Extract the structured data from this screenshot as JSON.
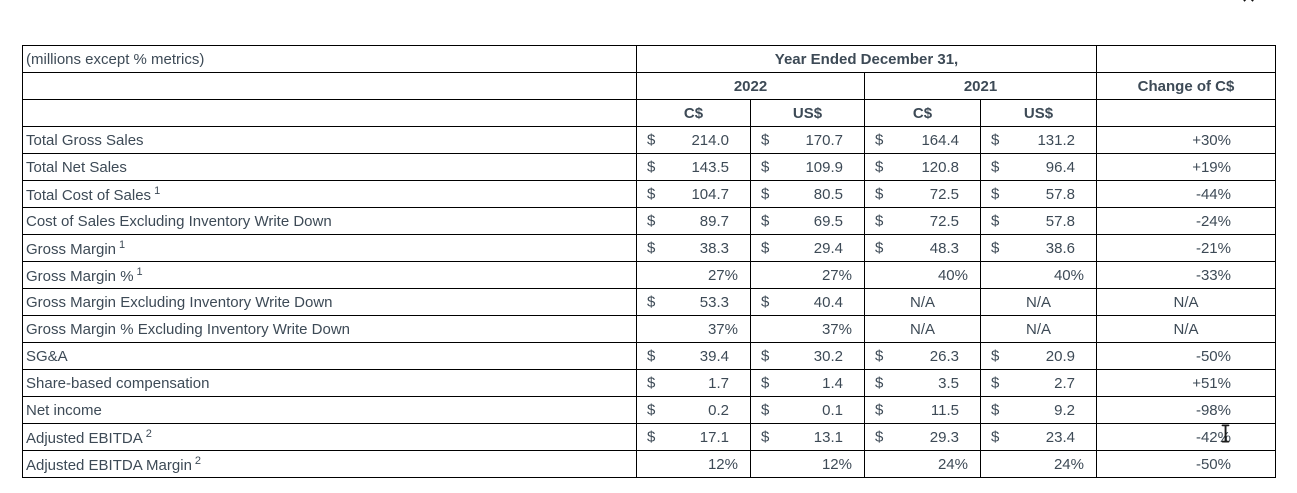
{
  "page": {
    "close_glyph": "✕"
  },
  "table": {
    "unit_note": "(millions except % metrics)",
    "period_header": "Year Ended December 31,",
    "years": [
      "2022",
      "2021"
    ],
    "change_header": "Change of C$",
    "currency_headers": [
      "C$",
      "US$",
      "C$",
      "US$"
    ],
    "rows": [
      {
        "label": "Total Gross Sales",
        "sup": "",
        "cells": [
          [
            "$",
            "214.0"
          ],
          [
            "$",
            "170.7"
          ],
          [
            "$",
            "164.4"
          ],
          [
            "$",
            "131.2"
          ]
        ],
        "change": "+30%"
      },
      {
        "label": "Total Net Sales",
        "sup": "",
        "cells": [
          [
            "$",
            "143.5"
          ],
          [
            "$",
            "109.9"
          ],
          [
            "$",
            "120.8"
          ],
          [
            "$",
            "96.4"
          ]
        ],
        "change": "+19%"
      },
      {
        "label": "Total Cost of Sales",
        "sup": "1",
        "cells": [
          [
            "$",
            "104.7"
          ],
          [
            "$",
            "80.5"
          ],
          [
            "$",
            "72.5"
          ],
          [
            "$",
            "57.8"
          ]
        ],
        "change": "-44%"
      },
      {
        "label": "Cost of Sales Excluding Inventory Write Down",
        "sup": "",
        "cells": [
          [
            "$",
            "89.7"
          ],
          [
            "$",
            "69.5"
          ],
          [
            "$",
            "72.5"
          ],
          [
            "$",
            "57.8"
          ]
        ],
        "change": "-24%"
      },
      {
        "label": "Gross Margin",
        "sup": "1",
        "cells": [
          [
            "$",
            "38.3"
          ],
          [
            "$",
            "29.4"
          ],
          [
            "$",
            "48.3"
          ],
          [
            "$",
            "38.6"
          ]
        ],
        "change": "-21%"
      },
      {
        "label": "Gross Margin %",
        "sup": "1",
        "cells": [
          [
            "",
            "27%"
          ],
          [
            "",
            "27%"
          ],
          [
            "",
            "40%"
          ],
          [
            "",
            "40%"
          ]
        ],
        "change": "-33%"
      },
      {
        "label": "Gross Margin Excluding Inventory Write Down",
        "sup": "",
        "cells": [
          [
            "$",
            "53.3"
          ],
          [
            "$",
            "40.4"
          ],
          [
            "",
            "N/A"
          ],
          [
            "",
            "N/A"
          ]
        ],
        "change": "N/A"
      },
      {
        "label": "Gross Margin % Excluding Inventory Write Down",
        "sup": "",
        "cells": [
          [
            "",
            "37%"
          ],
          [
            "",
            "37%"
          ],
          [
            "",
            "N/A"
          ],
          [
            "",
            "N/A"
          ]
        ],
        "change": "N/A"
      },
      {
        "label": "SG&A",
        "sup": "",
        "cells": [
          [
            "$",
            "39.4"
          ],
          [
            "$",
            "30.2"
          ],
          [
            "$",
            "26.3"
          ],
          [
            "$",
            "20.9"
          ]
        ],
        "change": "-50%"
      },
      {
        "label": "Share-based compensation",
        "sup": "",
        "cells": [
          [
            "$",
            "1.7"
          ],
          [
            "$",
            "1.4"
          ],
          [
            "$",
            "3.5"
          ],
          [
            "$",
            "2.7"
          ]
        ],
        "change": "+51%"
      },
      {
        "label": "Net income",
        "sup": "",
        "cells": [
          [
            "$",
            "0.2"
          ],
          [
            "$",
            "0.1"
          ],
          [
            "$",
            "11.5"
          ],
          [
            "$",
            "9.2"
          ]
        ],
        "change": "-98%"
      },
      {
        "label": "Adjusted EBITDA",
        "sup": "2",
        "cells": [
          [
            "$",
            "17.1"
          ],
          [
            "$",
            "13.1"
          ],
          [
            "$",
            "29.3"
          ],
          [
            "$",
            "23.4"
          ]
        ],
        "change": "-42%"
      },
      {
        "label": "Adjusted EBITDA Margin",
        "sup": "2",
        "cells": [
          [
            "",
            "12%"
          ],
          [
            "",
            "12%"
          ],
          [
            "",
            "24%"
          ],
          [
            "",
            "24%"
          ]
        ],
        "change": "-50%"
      }
    ]
  },
  "colors": {
    "text": "#3d4a56",
    "border": "#000000",
    "background": "#ffffff"
  }
}
